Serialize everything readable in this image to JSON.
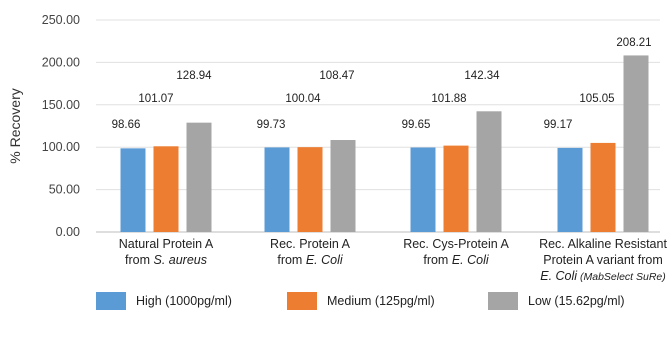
{
  "chart_data": {
    "type": "bar",
    "ylabel": "% Recovery",
    "ylim": [
      0,
      250
    ],
    "yticks": [
      "0.00",
      "50.00",
      "100.00",
      "150.00",
      "200.00",
      "250.00"
    ],
    "grid": true,
    "legend_position": "bottom",
    "categories": [
      {
        "lines": [
          [
            {
              "t": "Natural Protein A",
              "i": false
            }
          ],
          [
            {
              "t": "from ",
              "i": false
            },
            {
              "t": "S. aureus",
              "i": true
            }
          ]
        ]
      },
      {
        "lines": [
          [
            {
              "t": "Rec. Protein A",
              "i": false
            }
          ],
          [
            {
              "t": "from ",
              "i": false
            },
            {
              "t": "E. Coli",
              "i": true
            }
          ]
        ]
      },
      {
        "lines": [
          [
            {
              "t": "Rec. Cys-Protein A",
              "i": false
            }
          ],
          [
            {
              "t": "from ",
              "i": false
            },
            {
              "t": "E. Coli",
              "i": true
            }
          ]
        ]
      },
      {
        "lines": [
          [
            {
              "t": "Rec. Alkaline Resistant",
              "i": false
            }
          ],
          [
            {
              "t": "Protein A variant from",
              "i": false
            }
          ],
          [
            {
              "t": "E. Coli",
              "i": true
            },
            {
              "t": " (MabSelect SuRe)",
              "i": true,
              "small": true
            }
          ]
        ]
      }
    ],
    "series": [
      {
        "name": "High (1000pg/ml)",
        "color": "#5b9bd5",
        "values": [
          98.66,
          99.73,
          99.65,
          99.17
        ],
        "labels": [
          "98.66",
          "99.73",
          "99.65",
          "99.17"
        ]
      },
      {
        "name": "Medium (125pg/ml)",
        "color": "#ed7d31",
        "values": [
          101.07,
          100.04,
          101.88,
          105.05
        ],
        "labels": [
          "101.07",
          "100.04",
          "101.88",
          "105.05"
        ]
      },
      {
        "name": "Low (15.62pg/ml)",
        "color": "#a5a5a5",
        "values": [
          128.94,
          108.47,
          142.34,
          208.21
        ],
        "labels": [
          "128.94",
          "108.47",
          "142.34",
          "208.21"
        ]
      }
    ]
  }
}
